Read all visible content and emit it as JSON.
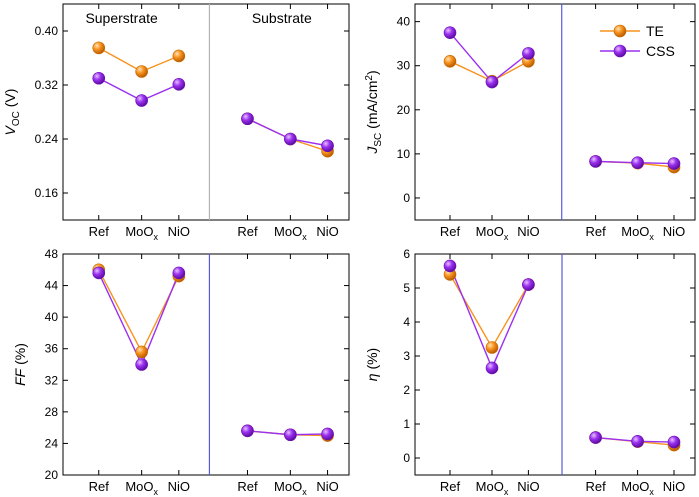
{
  "colors": {
    "te": "#f7931e",
    "te_edge": "#c86a00",
    "css": "#9b30f0",
    "css_edge": "#6a10b8",
    "divider_gray": "#b4b4b4",
    "divider_blue": "#5a5ae0"
  },
  "legend": {
    "te": "TE",
    "css": "CSS"
  },
  "chart_data": [
    {
      "type": "line",
      "id": "voc",
      "ylabel": "V_OC (V)",
      "ylabel_main": "V",
      "ylabel_sub": "OC",
      "ylabel_unit": " (V)",
      "ylim": [
        0.12,
        0.44
      ],
      "yticks": [
        0.16,
        0.24,
        0.32,
        0.4
      ],
      "ytick_labels": [
        "0.16",
        "0.24",
        "0.32",
        "0.40"
      ],
      "groups": [
        {
          "label": "Superstrate",
          "categories": [
            "Ref",
            "MoOx",
            "NiO"
          ]
        },
        {
          "label": "Substrate",
          "categories": [
            "Ref",
            "MoOx",
            "NiO"
          ]
        }
      ],
      "divider": "gray",
      "series": [
        {
          "name": "TE",
          "superstrate": [
            0.375,
            0.34,
            0.363
          ],
          "substrate": [
            0.27,
            0.24,
            0.222
          ]
        },
        {
          "name": "CSS",
          "superstrate": [
            0.33,
            0.297,
            0.321
          ],
          "substrate": [
            0.27,
            0.24,
            0.23
          ]
        }
      ]
    },
    {
      "type": "line",
      "id": "jsc",
      "ylabel": "J_SC (mA/cm2)",
      "ylabel_main": "J",
      "ylabel_sub": "SC",
      "ylabel_unit": " (mA/cm",
      "ylabel_sup": "2",
      "ylabel_close": ")",
      "ylim": [
        -5,
        44
      ],
      "yticks": [
        0,
        10,
        20,
        30,
        40
      ],
      "ytick_labels": [
        "0",
        "10",
        "20",
        "30",
        "40"
      ],
      "groups": [
        {
          "label": "",
          "categories": [
            "Ref",
            "MoOx",
            "NiO"
          ]
        },
        {
          "label": "",
          "categories": [
            "Ref",
            "MoOx",
            "NiO"
          ]
        }
      ],
      "divider": "blue",
      "legend": "top-right",
      "series": [
        {
          "name": "TE",
          "superstrate": [
            31.0,
            26.5,
            31.0
          ],
          "substrate": [
            8.3,
            7.9,
            7.0
          ]
        },
        {
          "name": "CSS",
          "superstrate": [
            37.5,
            26.3,
            32.8
          ],
          "substrate": [
            8.3,
            8.0,
            7.8
          ]
        }
      ]
    },
    {
      "type": "line",
      "id": "ff",
      "ylabel": "FF (%)",
      "ylabel_main": "FF",
      "ylabel_sub": "",
      "ylabel_unit": " (%)",
      "ylim": [
        20,
        48
      ],
      "yticks": [
        20,
        24,
        28,
        32,
        36,
        40,
        44,
        48
      ],
      "ytick_labels": [
        "20",
        "24",
        "28",
        "32",
        "36",
        "40",
        "44",
        "48"
      ],
      "groups": [
        {
          "label": "",
          "categories": [
            "Ref",
            "MoOx",
            "NiO"
          ]
        },
        {
          "label": "",
          "categories": [
            "Ref",
            "MoOx",
            "NiO"
          ]
        }
      ],
      "divider": "blue",
      "series": [
        {
          "name": "TE",
          "superstrate": [
            46.0,
            35.6,
            45.2
          ],
          "substrate": [
            25.6,
            25.1,
            25.0
          ]
        },
        {
          "name": "CSS",
          "superstrate": [
            45.6,
            34.0,
            45.6
          ],
          "substrate": [
            25.6,
            25.1,
            25.2
          ]
        }
      ]
    },
    {
      "type": "line",
      "id": "eta",
      "ylabel": "η (%)",
      "ylabel_main": "η",
      "ylabel_sub": "",
      "ylabel_unit": " (%)",
      "ylim": [
        -0.5,
        6
      ],
      "yticks": [
        0,
        1,
        2,
        3,
        4,
        5,
        6
      ],
      "ytick_labels": [
        "0",
        "1",
        "2",
        "3",
        "4",
        "5",
        "6"
      ],
      "groups": [
        {
          "label": "",
          "categories": [
            "Ref",
            "MoOx",
            "NiO"
          ]
        },
        {
          "label": "",
          "categories": [
            "Ref",
            "MoOx",
            "NiO"
          ]
        }
      ],
      "divider": "blue",
      "series": [
        {
          "name": "TE",
          "superstrate": [
            5.4,
            3.25,
            5.1
          ],
          "substrate": [
            0.6,
            0.48,
            0.38
          ]
        },
        {
          "name": "CSS",
          "superstrate": [
            5.65,
            2.65,
            5.1
          ],
          "substrate": [
            0.6,
            0.49,
            0.47
          ]
        }
      ]
    }
  ]
}
